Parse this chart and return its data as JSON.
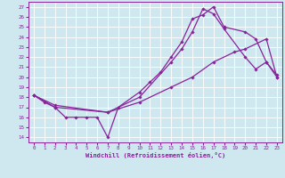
{
  "xlabel": "Windchill (Refroidissement éolien,°C)",
  "bg_color": "#cfe8f0",
  "line_color": "#882299",
  "grid_color": "#ffffff",
  "xlim": [
    -0.5,
    23.5
  ],
  "ylim": [
    13.5,
    27.5
  ],
  "xticks": [
    0,
    1,
    2,
    3,
    4,
    5,
    6,
    7,
    8,
    9,
    10,
    11,
    12,
    13,
    14,
    15,
    16,
    17,
    18,
    19,
    20,
    21,
    22,
    23
  ],
  "yticks": [
    14,
    15,
    16,
    17,
    18,
    19,
    20,
    21,
    22,
    23,
    24,
    25,
    26,
    27
  ],
  "line1_x": [
    0,
    1,
    2,
    3,
    4,
    5,
    6,
    7,
    8,
    10,
    11,
    12,
    13,
    14,
    15,
    16,
    17,
    18,
    20,
    21,
    22,
    23
  ],
  "line1_y": [
    18.2,
    17.5,
    17.0,
    16.0,
    16.0,
    16.0,
    16.0,
    14.0,
    17.0,
    18.5,
    19.5,
    20.5,
    22.0,
    23.5,
    25.8,
    26.2,
    27.0,
    25.0,
    24.5,
    23.8,
    21.5,
    20.2
  ],
  "line2_x": [
    0,
    2,
    7,
    10,
    13,
    14,
    15,
    16,
    17,
    18,
    20,
    21,
    22,
    23
  ],
  "line2_y": [
    18.2,
    17.0,
    16.5,
    18.0,
    21.5,
    22.8,
    24.5,
    26.8,
    26.3,
    24.8,
    22.0,
    20.8,
    21.5,
    20.0
  ],
  "line3_x": [
    0,
    2,
    7,
    10,
    13,
    15,
    17,
    19,
    20,
    22,
    23
  ],
  "line3_y": [
    18.2,
    17.2,
    16.5,
    17.5,
    19.0,
    20.0,
    21.5,
    22.5,
    22.8,
    23.8,
    20.0
  ]
}
